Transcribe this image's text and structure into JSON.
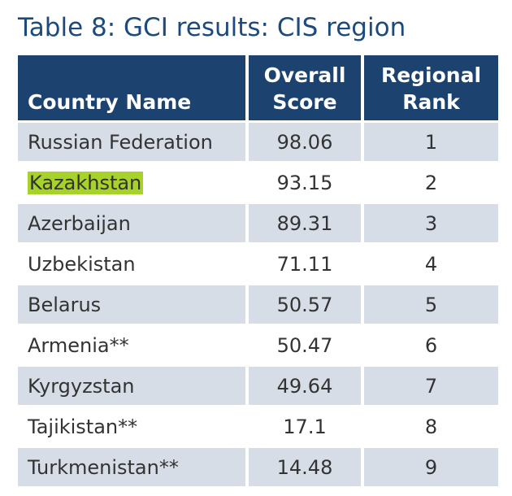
{
  "header": {
    "title": "Table 8: GCI results: CIS region"
  },
  "table": {
    "columns": [
      [
        "Country Name"
      ],
      [
        "Overall",
        "Score"
      ],
      [
        "Regional",
        "Rank"
      ]
    ],
    "rows": [
      [
        "Russian Federation",
        "98.06",
        "1"
      ],
      [
        "Kazakhstan",
        "93.15",
        "2"
      ],
      [
        "Azerbaijan",
        "89.31",
        "3"
      ],
      [
        "Uzbekistan",
        "71.11",
        "4"
      ],
      [
        "Belarus",
        "50.57",
        "5"
      ],
      [
        "Armenia**",
        "50.47",
        "6"
      ],
      [
        "Kyrgyzstan",
        "49.64",
        "7"
      ],
      [
        "Tajikistan**",
        "17.1",
        "8"
      ],
      [
        "Turkmenistan**",
        "14.48",
        "9"
      ]
    ]
  }
}
